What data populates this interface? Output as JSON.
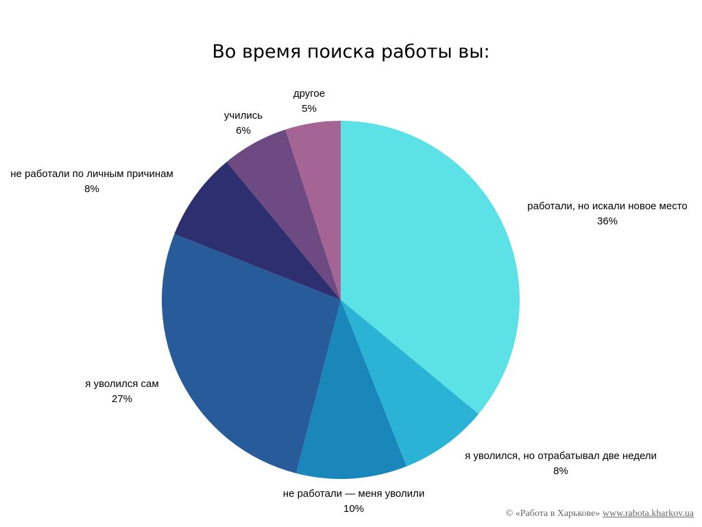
{
  "chart_data": {
    "type": "pie",
    "title": "Во время поиска работы вы:",
    "slices": [
      {
        "label": "работали, но искали новое место",
        "value": 36,
        "value_label": "36%",
        "color": "#5ce1e6"
      },
      {
        "label": "я уволился, но отрабатывал две недели",
        "value": 8,
        "value_label": "8%",
        "color": "#2bb3d6"
      },
      {
        "label": "не работали — меня уволили",
        "value": 10,
        "value_label": "10%",
        "color": "#1a87bb"
      },
      {
        "label": "я уволился сам",
        "value": 27,
        "value_label": "27%",
        "color": "#275b99"
      },
      {
        "label": "не работали по личным причинам",
        "value": 8,
        "value_label": "8%",
        "color": "#2e2f6e"
      },
      {
        "label": "учились",
        "value": 6,
        "value_label": "6%",
        "color": "#6d4a82"
      },
      {
        "label": "другое",
        "value": 5,
        "value_label": "5%",
        "color": "#a46594"
      }
    ]
  },
  "footer": {
    "copyright": "© «Работа в Харькове»",
    "link": "www.rabota.kharkov.ua"
  }
}
